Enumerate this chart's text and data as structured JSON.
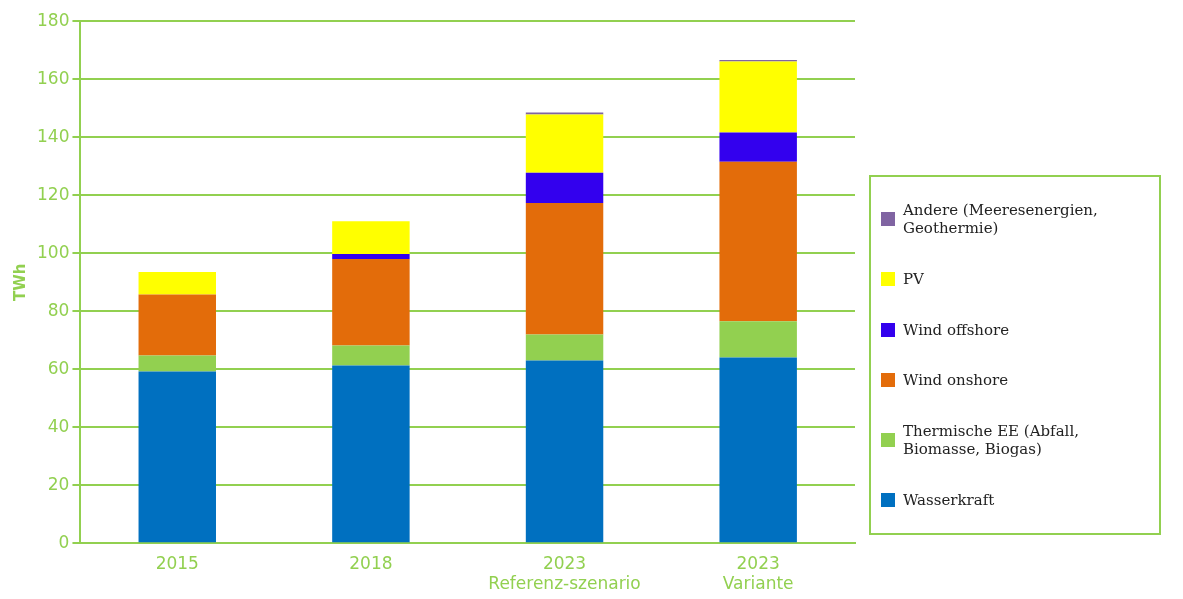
{
  "chart_data": {
    "type": "bar",
    "stacked": true,
    "ylabel": "TWh",
    "categories": [
      "2015",
      "2018",
      "2023 Referenz-szenario",
      "2023 Variante"
    ],
    "series": [
      {
        "name": "Wasserkraft",
        "color": "#0070c0",
        "values": [
          59.2,
          61.3,
          63,
          64
        ]
      },
      {
        "name": "Thermische EE (Abfall, Biomasse, Biogas)",
        "color": "#92d050",
        "values": [
          5.5,
          6.9,
          9,
          12.5
        ]
      },
      {
        "name": "Wind onshore",
        "color": "#e36c0a",
        "values": [
          21.1,
          29.8,
          45.3,
          55
        ]
      },
      {
        "name": "Wind offshore",
        "color": "#3300ee",
        "values": [
          0,
          1.7,
          10.4,
          10.1
        ]
      },
      {
        "name": "PV",
        "color": "#ffff00",
        "values": [
          7.7,
          11.3,
          20.1,
          24.5
        ]
      },
      {
        "name": "Andere (Meeresenergien, Geothermie)",
        "color": "#8064a2",
        "values": [
          0,
          0,
          0.7,
          0.5
        ]
      }
    ],
    "ylim": [
      0,
      180
    ],
    "yticks": [
      0,
      20,
      40,
      60,
      80,
      100,
      120,
      140,
      160,
      180
    ],
    "grid": "y",
    "legend": "right"
  }
}
